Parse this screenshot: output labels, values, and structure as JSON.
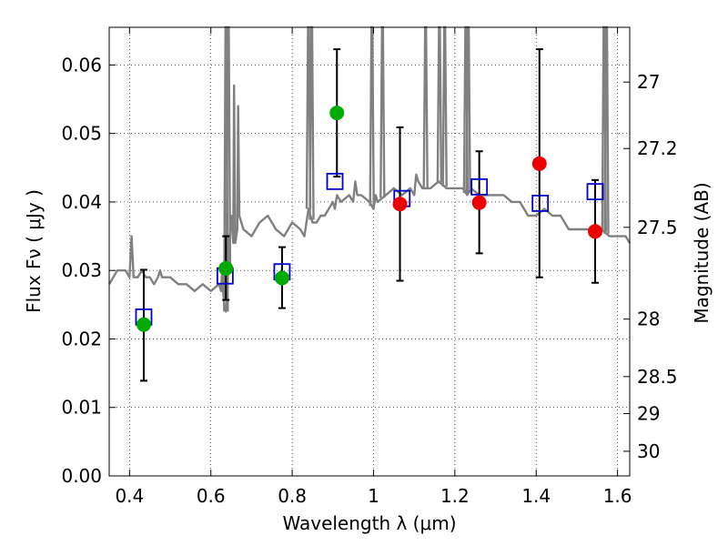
{
  "chart_data": {
    "type": "scatter",
    "xlabel": "Wavelength  λ (μm)",
    "ylabel": "Flux  Fν  ( μJy )",
    "y2label": "Magnitude (AB)",
    "xlim": [
      0.35,
      1.63
    ],
    "ylim": [
      0.0,
      0.0655
    ],
    "grid": true,
    "x_ticks": [
      0.4,
      0.6,
      0.8,
      1.0,
      1.2,
      1.4,
      1.6
    ],
    "x_tick_labels": [
      "0.4",
      "0.6",
      "0.8",
      "1",
      "1.2",
      "1.4",
      "1.6"
    ],
    "y_ticks": [
      0.0,
      0.01,
      0.02,
      0.03,
      0.04,
      0.05,
      0.06
    ],
    "y_tick_labels": [
      "0.00",
      "0.01",
      "0.02",
      "0.03",
      "0.04",
      "0.05",
      "0.06"
    ],
    "y2_ticks": [
      {
        "label": "27",
        "flux": 0.0575
      },
      {
        "label": "27.2",
        "flux": 0.0478
      },
      {
        "label": "27.5",
        "flux": 0.0363
      },
      {
        "label": "28",
        "flux": 0.0229
      },
      {
        "label": "28.5",
        "flux": 0.0145
      },
      {
        "label": "29",
        "flux": 0.0091
      },
      {
        "label": "30",
        "flux": 0.0036
      }
    ],
    "colors": {
      "spectrum": "#808080",
      "model_marker": "#0000cc",
      "green_point": "#00aa00",
      "red_point": "#ee0000",
      "error_bar": "#000000",
      "grid": "#000000"
    },
    "spectrum": {
      "x": [
        0.35,
        0.37,
        0.39,
        0.4,
        0.405,
        0.41,
        0.42,
        0.43,
        0.44,
        0.45,
        0.46,
        0.47,
        0.475,
        0.48,
        0.49,
        0.5,
        0.52,
        0.54,
        0.56,
        0.58,
        0.6,
        0.62,
        0.625,
        0.628,
        0.63,
        0.633,
        0.637,
        0.64,
        0.645,
        0.65,
        0.655,
        0.657,
        0.66,
        0.665,
        0.667,
        0.67,
        0.68,
        0.7,
        0.72,
        0.74,
        0.76,
        0.78,
        0.8,
        0.82,
        0.83,
        0.84,
        0.845,
        0.85,
        0.86,
        0.87,
        0.88,
        0.89,
        0.9,
        0.905,
        0.91,
        0.92,
        0.94,
        0.95,
        0.955,
        0.96,
        0.97,
        0.99,
        1.0,
        1.005,
        1.01,
        1.03,
        1.05,
        1.07,
        1.09,
        1.1,
        1.105,
        1.11,
        1.12,
        1.14,
        1.16,
        1.18,
        1.2,
        1.22,
        1.23,
        1.24,
        1.26,
        1.28,
        1.3,
        1.32,
        1.34,
        1.36,
        1.38,
        1.4,
        1.42,
        1.44,
        1.46,
        1.48,
        1.5,
        1.52,
        1.54,
        1.56,
        1.58,
        1.6,
        1.62,
        1.63
      ],
      "y": [
        0.028,
        0.03,
        0.03,
        0.029,
        0.035,
        0.029,
        0.029,
        0.03,
        0.029,
        0.029,
        0.028,
        0.029,
        0.03,
        0.029,
        0.029,
        0.029,
        0.028,
        0.028,
        0.027,
        0.028,
        0.027,
        0.028,
        0.027,
        0.03,
        0.027,
        0.025,
        0.024,
        0.026,
        0.034,
        0.038,
        0.034,
        0.057,
        0.034,
        0.036,
        0.054,
        0.038,
        0.036,
        0.035,
        0.037,
        0.038,
        0.036,
        0.035,
        0.037,
        0.036,
        0.035,
        0.039,
        0.038,
        0.037,
        0.037,
        0.038,
        0.038,
        0.039,
        0.04,
        0.039,
        0.041,
        0.04,
        0.041,
        0.04,
        0.043,
        0.041,
        0.041,
        0.04,
        0.039,
        0.041,
        0.04,
        0.041,
        0.042,
        0.041,
        0.042,
        0.041,
        0.044,
        0.043,
        0.042,
        0.042,
        0.043,
        0.042,
        0.042,
        0.042,
        0.041,
        0.042,
        0.041,
        0.041,
        0.041,
        0.041,
        0.04,
        0.04,
        0.038,
        0.038,
        0.039,
        0.038,
        0.038,
        0.036,
        0.036,
        0.036,
        0.036,
        0.036,
        0.035,
        0.035,
        0.035,
        0.034
      ]
    },
    "emission_lines": [
      {
        "x": 0.637,
        "y": 0.0655
      },
      {
        "x": 0.643,
        "y": 0.0655
      },
      {
        "x": 0.84,
        "y": 0.0655
      },
      {
        "x": 0.848,
        "y": 0.0655
      },
      {
        "x": 0.996,
        "y": 0.0655
      },
      {
        "x": 1.022,
        "y": 0.0655
      },
      {
        "x": 1.128,
        "y": 0.0655
      },
      {
        "x": 1.162,
        "y": 0.0655
      },
      {
        "x": 1.175,
        "y": 0.0655
      },
      {
        "x": 1.227,
        "y": 0.0655
      },
      {
        "x": 1.233,
        "y": 0.0655
      },
      {
        "x": 1.567,
        "y": 0.0655
      },
      {
        "x": 1.573,
        "y": 0.0655
      }
    ],
    "model_points": {
      "x": [
        0.435,
        0.635,
        0.775,
        0.905,
        1.07,
        1.26,
        1.41,
        1.545
      ],
      "y": [
        0.0232,
        0.0292,
        0.0298,
        0.043,
        0.0405,
        0.0422,
        0.0398,
        0.0415
      ]
    },
    "observed_points": [
      {
        "x": 0.435,
        "y": 0.0221,
        "err_low": 0.0139,
        "err_high": 0.0301,
        "color": "green"
      },
      {
        "x": 0.637,
        "y": 0.0303,
        "err_low": 0.0257,
        "err_high": 0.035,
        "color": "green"
      },
      {
        "x": 0.775,
        "y": 0.0289,
        "err_low": 0.0245,
        "err_high": 0.0334,
        "color": "green"
      },
      {
        "x": 0.91,
        "y": 0.053,
        "err_low": 0.0437,
        "err_high": 0.0623,
        "color": "green"
      },
      {
        "x": 1.065,
        "y": 0.0397,
        "err_low": 0.0285,
        "err_high": 0.0509,
        "color": "red"
      },
      {
        "x": 1.26,
        "y": 0.0399,
        "err_low": 0.0325,
        "err_high": 0.0474,
        "color": "red"
      },
      {
        "x": 1.408,
        "y": 0.0456,
        "err_low": 0.029,
        "err_high": 0.0623,
        "color": "red"
      },
      {
        "x": 1.545,
        "y": 0.0357,
        "err_low": 0.0282,
        "err_high": 0.0432,
        "color": "red"
      }
    ]
  }
}
